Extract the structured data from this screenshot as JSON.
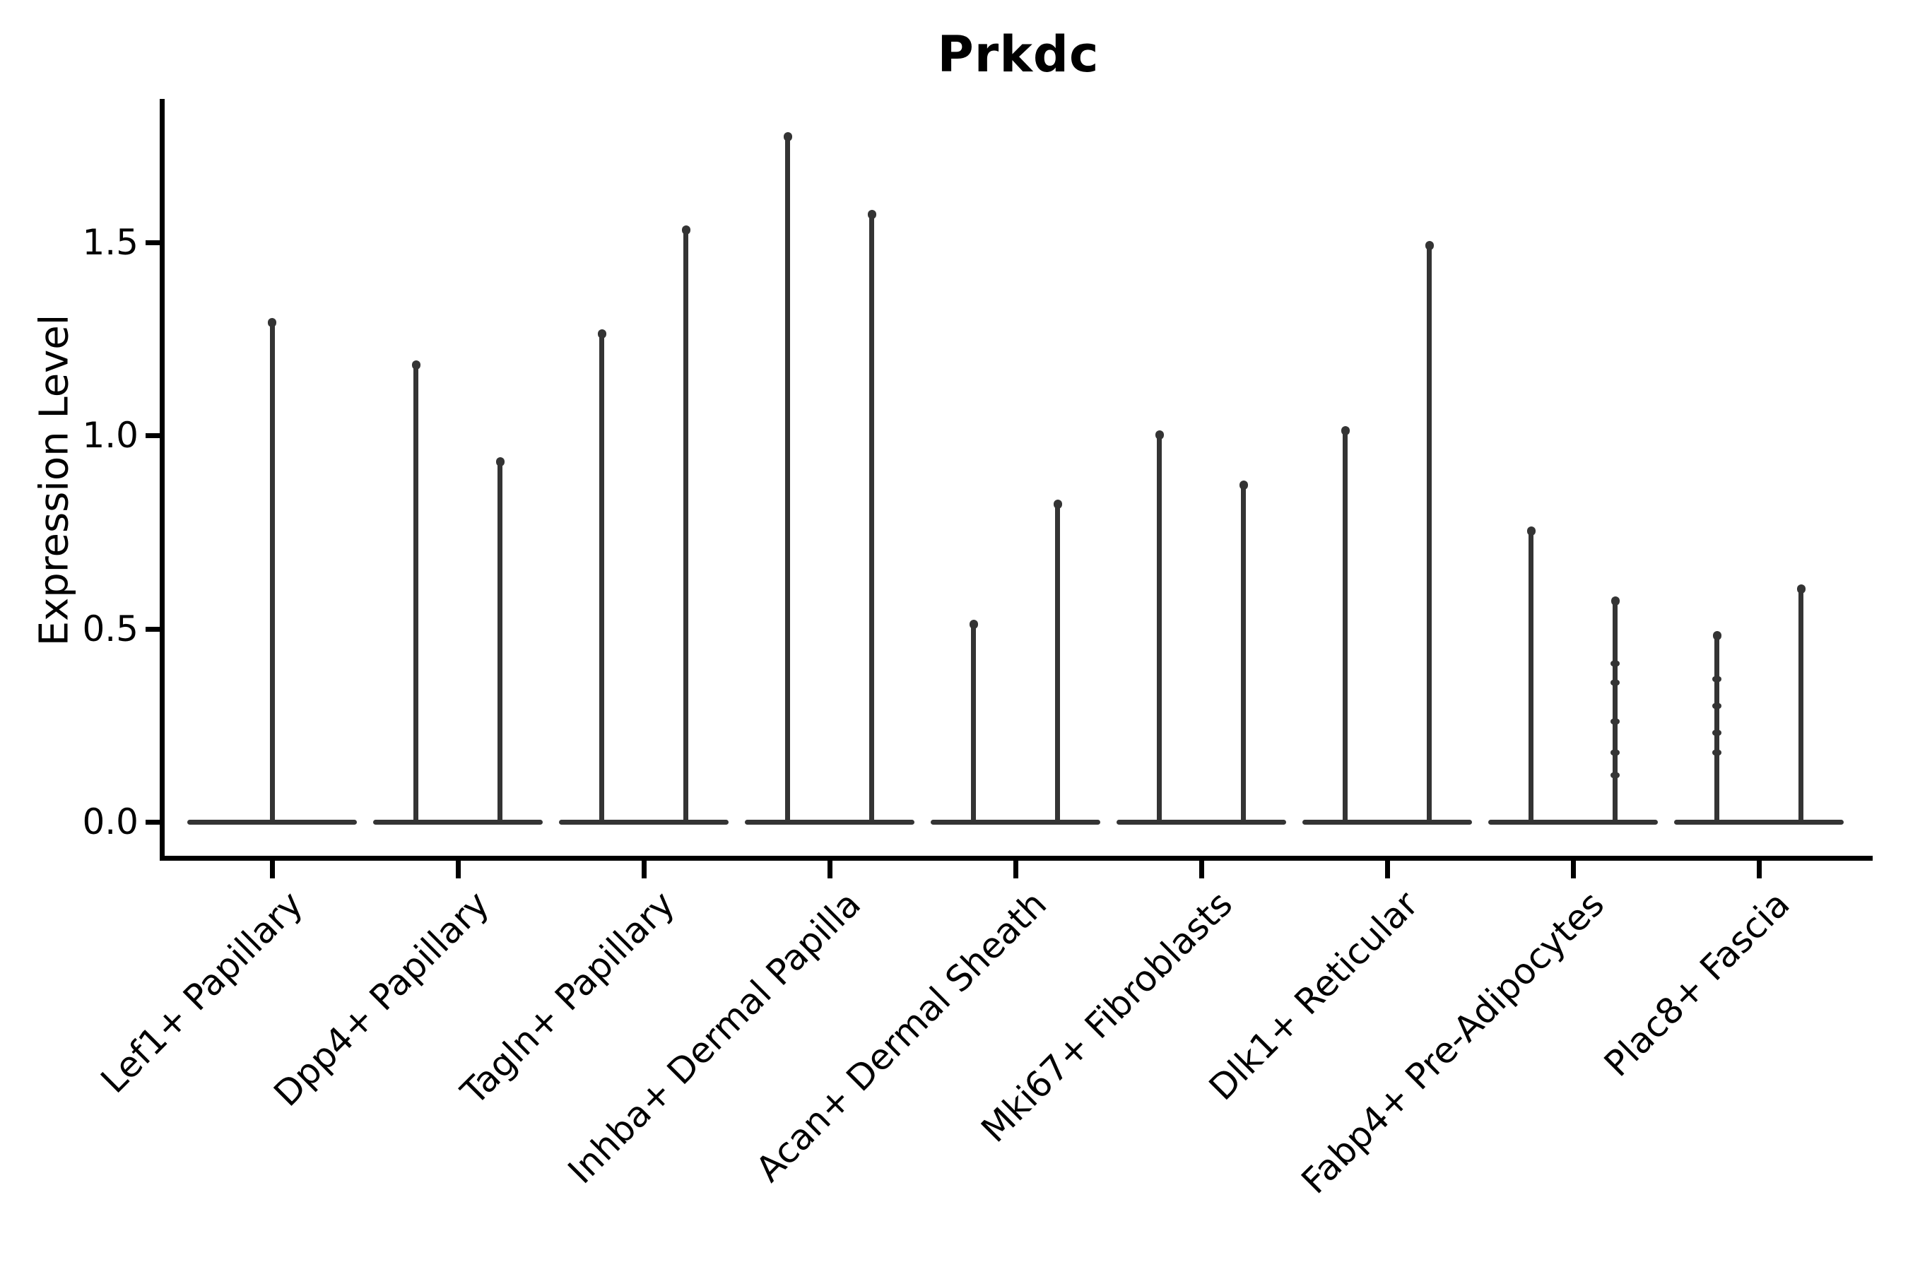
{
  "chart_data": {
    "type": "violin",
    "title": "Prkdc",
    "xlabel": "",
    "ylabel": "Expression Level",
    "ytick_labels": [
      "0.0",
      "0.5",
      "1.0",
      "1.5"
    ],
    "ytick_values": [
      0.0,
      0.5,
      1.0,
      1.5
    ],
    "ylim": [
      -0.09,
      1.87
    ],
    "grid": false,
    "legend": "none",
    "style_notes": "needle-thin violins: wide flat body at 0 expression with a thin spike up to max value; two split violins per category except Lef1+ Papillary which has one centered full-width violin",
    "categories": [
      "Lef1+ Papillary",
      "Dpp4+ Papillary",
      "Tagln+ Papillary",
      "Inhba+ Dermal Papilla",
      "Acan+ Dermal Sheath",
      "Mki67+ Fibroblasts",
      "Dlk1+ Reticular",
      "Fabp4+ Pre-Adipocytes",
      "Plac8+ Fascia"
    ],
    "violins": [
      {
        "category": "Lef1+ Papillary",
        "max_values": [
          1.3
        ],
        "knots": [
          []
        ]
      },
      {
        "category": "Dpp4+ Papillary",
        "max_values": [
          1.19,
          0.94
        ],
        "knots": [
          [],
          []
        ]
      },
      {
        "category": "Tagln+ Papillary",
        "max_values": [
          1.27,
          1.54
        ],
        "knots": [
          [],
          []
        ]
      },
      {
        "category": "Inhba+ Dermal Papilla",
        "max_values": [
          1.78,
          1.58
        ],
        "knots": [
          [],
          []
        ]
      },
      {
        "category": "Acan+ Dermal Sheath",
        "max_values": [
          0.52,
          0.83
        ],
        "knots": [
          [],
          []
        ]
      },
      {
        "category": "Mki67+ Fibroblasts",
        "max_values": [
          1.01,
          0.88
        ],
        "knots": [
          [],
          []
        ]
      },
      {
        "category": "Dlk1+ Reticular",
        "max_values": [
          1.02,
          1.5
        ],
        "knots": [
          [],
          []
        ]
      },
      {
        "category": "Fabp4+ Pre-Adipocytes",
        "max_values": [
          0.76,
          0.58
        ],
        "knots": [
          [],
          [
            0.41,
            0.36,
            0.26,
            0.18,
            0.12
          ]
        ]
      },
      {
        "category": "Plac8+ Fascia",
        "max_values": [
          0.49,
          0.61
        ],
        "knots": [
          [
            0.37,
            0.3,
            0.23,
            0.18
          ],
          []
        ]
      }
    ],
    "colors": {
      "violin": "#343434",
      "axis": "#000000",
      "text": "#000000",
      "background": "#ffffff"
    }
  }
}
